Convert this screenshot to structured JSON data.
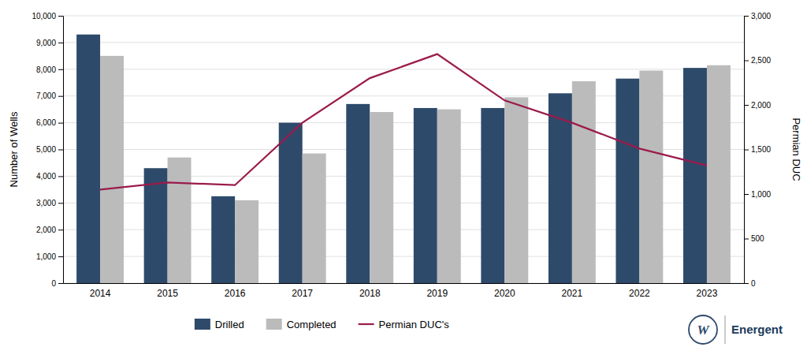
{
  "chart_data": {
    "type": "bar",
    "categories": [
      "2014",
      "2015",
      "2016",
      "2017",
      "2018",
      "2019",
      "2020",
      "2021",
      "2022",
      "2023"
    ],
    "series": [
      {
        "name": "Drilled",
        "color": "#2E4A6B",
        "values": [
          9300,
          4300,
          3250,
          6000,
          6700,
          6550,
          6550,
          7100,
          7650,
          8050
        ]
      },
      {
        "name": "Completed",
        "color": "#BBBBBB",
        "values": [
          8500,
          4700,
          3100,
          4850,
          6400,
          6500,
          6950,
          7550,
          7950,
          8150
        ]
      },
      {
        "name": "Permian DUC's",
        "type": "line",
        "axis": "y2",
        "color": "#9B1B4B",
        "values": [
          1050,
          1130,
          1100,
          1800,
          2300,
          2570,
          2050,
          1800,
          1510,
          1320
        ]
      }
    ],
    "ylabel": "Number of Wells",
    "y2label": "Permian DUC",
    "ylim": [
      0,
      10000
    ],
    "yticks": [
      0,
      {
        "value": 1000,
        "label": "1,000"
      },
      {
        "value": 2000,
        "label": "2,000"
      },
      {
        "value": 3000,
        "label": "3,000"
      },
      {
        "value": 4000,
        "label": "4,000"
      },
      {
        "value": 5000,
        "label": "5,000"
      },
      {
        "value": 6000,
        "label": "6,000"
      },
      {
        "value": 7000,
        "label": "7,000"
      },
      {
        "value": 8000,
        "label": "8,000"
      },
      {
        "value": 9000,
        "label": "9,000"
      },
      {
        "value": 10000,
        "label": "10,000"
      }
    ],
    "y2lim": [
      0,
      3000
    ],
    "y2ticks": [
      0,
      500,
      {
        "value": 1000,
        "label": "1,000"
      },
      {
        "value": 1500,
        "label": "1,500"
      },
      {
        "value": 2000,
        "label": "2,000"
      },
      {
        "value": 2500,
        "label": "2,500"
      },
      {
        "value": 3000,
        "label": "3,000"
      }
    ],
    "grid": true,
    "legend": "bottom",
    "annotations": [
      "W",
      "Energent"
    ]
  }
}
